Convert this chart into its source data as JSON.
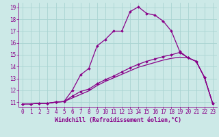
{
  "xlabel": "Windchill (Refroidissement éolien,°C)",
  "bg_color": "#cce9e7",
  "grid_color": "#aad4d2",
  "line_color": "#880088",
  "xlim": [
    -0.5,
    23.5
  ],
  "ylim": [
    10.6,
    19.4
  ],
  "xticks": [
    0,
    1,
    2,
    3,
    4,
    5,
    6,
    7,
    8,
    9,
    10,
    11,
    12,
    13,
    14,
    15,
    16,
    17,
    18,
    19,
    20,
    21,
    22,
    23
  ],
  "yticks": [
    11,
    12,
    13,
    14,
    15,
    16,
    17,
    18,
    19
  ],
  "line1_x": [
    0,
    1,
    2,
    3,
    4,
    5,
    6,
    7,
    8,
    9,
    10,
    11,
    12,
    13,
    14,
    15,
    16,
    17,
    18,
    19,
    20,
    21,
    22,
    23
  ],
  "line1_y": [
    10.85,
    10.85,
    10.9,
    10.9,
    11.0,
    11.05,
    12.0,
    13.3,
    13.85,
    15.75,
    16.3,
    17.0,
    17.0,
    18.65,
    19.05,
    18.5,
    18.35,
    17.85,
    17.0,
    15.3,
    14.75,
    14.45,
    13.1,
    10.9
  ],
  "line2_x": [
    0,
    1,
    2,
    3,
    4,
    5,
    6,
    7,
    8,
    9,
    10,
    11,
    12,
    13,
    14,
    15,
    16,
    17,
    18,
    19,
    20,
    21,
    22,
    23
  ],
  "line2_y": [
    10.85,
    10.85,
    10.9,
    10.9,
    11.0,
    11.05,
    11.5,
    11.9,
    12.1,
    12.55,
    12.9,
    13.2,
    13.55,
    13.9,
    14.2,
    14.45,
    14.65,
    14.85,
    15.0,
    15.2,
    14.75,
    14.45,
    13.1,
    10.9
  ],
  "line3_x": [
    0,
    1,
    2,
    3,
    4,
    5,
    6,
    7,
    8,
    9,
    10,
    11,
    12,
    13,
    14,
    15,
    16,
    17,
    18,
    19,
    20,
    21,
    22,
    23
  ],
  "line3_y": [
    10.85,
    10.85,
    10.9,
    10.9,
    11.0,
    11.05,
    11.35,
    11.65,
    11.95,
    12.4,
    12.75,
    13.05,
    13.35,
    13.65,
    13.95,
    14.15,
    14.35,
    14.55,
    14.7,
    14.8,
    14.75,
    14.45,
    13.1,
    10.9
  ],
  "tick_fontsize": 5.5,
  "xlabel_fontsize": 6.0
}
